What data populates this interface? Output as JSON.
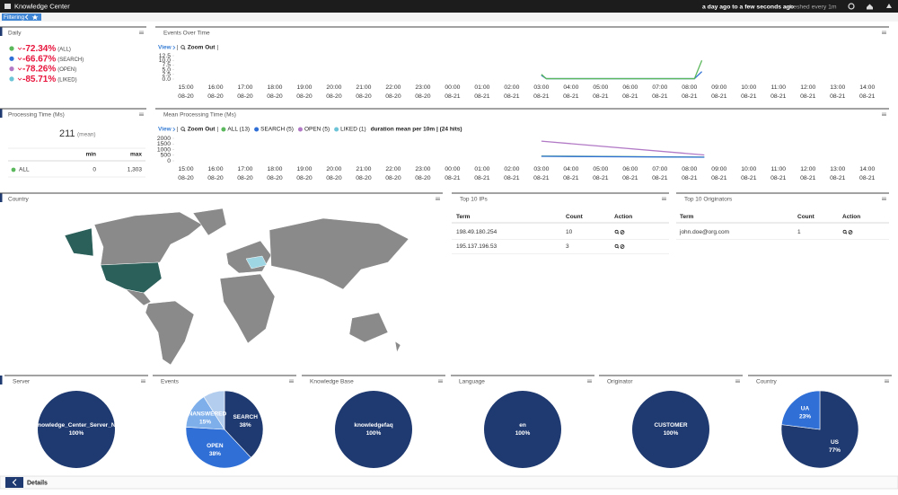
{
  "header": {
    "title": "Knowledge Center",
    "time_range": "a day ago to a few seconds ago",
    "refresh": "refreshed every 1m",
    "filtering": "Filtering"
  },
  "daily": {
    "title": "Daily",
    "items": [
      {
        "value": "-72.34%",
        "label": "(ALL)",
        "color": "#5cb85c"
      },
      {
        "value": "-66.67%",
        "label": "(SEARCH)",
        "color": "#2f6fd6"
      },
      {
        "value": "-78.26%",
        "label": "(OPEN)",
        "color": "#b27ac6"
      },
      {
        "value": "-85.71%",
        "label": "(LIKED)",
        "color": "#6cc4d6"
      }
    ]
  },
  "processing_time": {
    "title": "Processing Time (Ms)",
    "mean": "211",
    "mean_label": "(mean)",
    "columns": [
      "min",
      "max"
    ],
    "rows": [
      {
        "name": "ALL",
        "color": "#5cb85c",
        "min": "0",
        "max": "1,303"
      }
    ]
  },
  "charts": [
    {
      "type": "line",
      "title": "Events Over Time",
      "view": "View",
      "zoom": "Zoom Out",
      "xlim": [
        "08-20 14:40",
        "08-21 14:35"
      ],
      "xticks": [
        {
          "time": "15:00",
          "date": "08-20"
        },
        {
          "time": "16:00",
          "date": "08-20"
        },
        {
          "time": "17:00",
          "date": "08-20"
        },
        {
          "time": "18:00",
          "date": "08-20"
        },
        {
          "time": "19:00",
          "date": "08-20"
        },
        {
          "time": "20:00",
          "date": "08-20"
        },
        {
          "time": "21:00",
          "date": "08-20"
        },
        {
          "time": "22:00",
          "date": "08-20"
        },
        {
          "time": "23:00",
          "date": "08-20"
        },
        {
          "time": "00:00",
          "date": "08-21"
        },
        {
          "time": "01:00",
          "date": "08-21"
        },
        {
          "time": "02:00",
          "date": "08-21"
        },
        {
          "time": "03:00",
          "date": "08-21"
        },
        {
          "time": "04:00",
          "date": "08-21"
        },
        {
          "time": "05:00",
          "date": "08-21"
        },
        {
          "time": "06:00",
          "date": "08-21"
        },
        {
          "time": "07:00",
          "date": "08-21"
        },
        {
          "time": "08:00",
          "date": "08-21"
        },
        {
          "time": "09:00",
          "date": "08-21"
        },
        {
          "time": "10:00",
          "date": "08-21"
        },
        {
          "time": "11:00",
          "date": "08-21"
        },
        {
          "time": "12:00",
          "date": "08-21"
        },
        {
          "time": "13:00",
          "date": "08-21"
        },
        {
          "time": "14:00",
          "date": "08-21"
        }
      ],
      "ylim": [
        0,
        12.5
      ],
      "yticks": [
        {
          "value": 0,
          "label": "0.0"
        },
        {
          "value": 2.5,
          "label": "2.5"
        },
        {
          "value": 5,
          "label": "5.0"
        },
        {
          "value": 7.5,
          "label": "7.5"
        },
        {
          "value": 10,
          "label": "10.0"
        },
        {
          "value": 12.5,
          "label": "12.5"
        }
      ],
      "series": [
        {
          "color": "#2f6fd6",
          "x": [
            "08-21 03:00",
            "08-21 03:10",
            "08-21 08:10",
            "08-21 08:25"
          ],
          "values": [
            2,
            0.2,
            0.2,
            4
          ]
        },
        {
          "color": "#5cb85c",
          "x": [
            "08-21 03:00",
            "08-21 03:10",
            "08-21 08:10",
            "08-21 08:25"
          ],
          "values": [
            2.5,
            0.2,
            0.2,
            10
          ]
        }
      ]
    },
    {
      "type": "line",
      "title": "Mean Processing Time (Ms)",
      "view": "View",
      "zoom": "Zoom Out",
      "note": "duration mean per 10m | (24 hits)",
      "xlim": [
        "08-20 14:40",
        "08-21 14:35"
      ],
      "xticks": [
        {
          "time": "15:00",
          "date": "08-20"
        },
        {
          "time": "16:00",
          "date": "08-20"
        },
        {
          "time": "17:00",
          "date": "08-20"
        },
        {
          "time": "18:00",
          "date": "08-20"
        },
        {
          "time": "19:00",
          "date": "08-20"
        },
        {
          "time": "20:00",
          "date": "08-20"
        },
        {
          "time": "21:00",
          "date": "08-20"
        },
        {
          "time": "22:00",
          "date": "08-20"
        },
        {
          "time": "23:00",
          "date": "08-20"
        },
        {
          "time": "00:00",
          "date": "08-21"
        },
        {
          "time": "01:00",
          "date": "08-21"
        },
        {
          "time": "02:00",
          "date": "08-21"
        },
        {
          "time": "03:00",
          "date": "08-21"
        },
        {
          "time": "04:00",
          "date": "08-21"
        },
        {
          "time": "05:00",
          "date": "08-21"
        },
        {
          "time": "06:00",
          "date": "08-21"
        },
        {
          "time": "07:00",
          "date": "08-21"
        },
        {
          "time": "08:00",
          "date": "08-21"
        },
        {
          "time": "09:00",
          "date": "08-21"
        },
        {
          "time": "10:00",
          "date": "08-21"
        },
        {
          "time": "11:00",
          "date": "08-21"
        },
        {
          "time": "12:00",
          "date": "08-21"
        },
        {
          "time": "13:00",
          "date": "08-21"
        },
        {
          "time": "14:00",
          "date": "08-21"
        }
      ],
      "ylim": [
        0,
        2000
      ],
      "yticks": [
        0,
        500,
        1000,
        1500,
        2000
      ],
      "series": [
        {
          "name": "ALL (13)",
          "color": "#5cb85c",
          "x": [
            "08-21 03:00",
            "08-21 08:30"
          ],
          "values": [
            420,
            330
          ]
        },
        {
          "name": "SEARCH (5)",
          "color": "#2f6fd6",
          "x": [
            "08-21 03:00",
            "08-21 08:30"
          ],
          "values": [
            400,
            320
          ]
        },
        {
          "name": "OPEN (5)",
          "color": "#b27ac6",
          "x": [
            "08-21 03:00",
            "08-21 08:30"
          ],
          "values": [
            1750,
            520
          ]
        },
        {
          "name": "LIKED (1)",
          "color": "#6cc4d6",
          "x": [],
          "values": []
        }
      ]
    }
  ],
  "country_map": {
    "title": "Country"
  },
  "top_ips": {
    "title": "Top 10 IPs",
    "columns": [
      "Term",
      "Count",
      "Action"
    ],
    "rows": [
      [
        "198.49.180.254",
        "10"
      ],
      [
        "195.137.196.53",
        "3"
      ]
    ]
  },
  "top_originators": {
    "title": "Top 10 Originators",
    "columns": [
      "Term",
      "Count",
      "Action"
    ],
    "rows": [
      [
        "john.doe@org.com",
        "1"
      ]
    ]
  },
  "pies": [
    {
      "title": "Server",
      "labels": [
        "Knowledge_Center_Server_No"
      ],
      "values": [
        100
      ],
      "value_labels": [
        "100%"
      ],
      "colors": [
        "#1f3a70"
      ]
    },
    {
      "title": "Events",
      "labels": [
        "SEARCH",
        "OPEN",
        "UNANSWERED",
        null
      ],
      "values": [
        38,
        38,
        15,
        9
      ],
      "value_labels": [
        "38%",
        "38%",
        "15%",
        null
      ],
      "colors": [
        "#1f3a70",
        "#2f6fd6",
        "#7eafeb",
        "#b3cdef"
      ]
    },
    {
      "title": "Knowledge Base",
      "labels": [
        "knowledgefaq"
      ],
      "values": [
        100
      ],
      "value_labels": [
        "100%"
      ],
      "colors": [
        "#1f3a70"
      ]
    },
    {
      "title": "Language",
      "labels": [
        "en"
      ],
      "values": [
        100
      ],
      "value_labels": [
        "100%"
      ],
      "colors": [
        "#1f3a70"
      ]
    },
    {
      "title": "Originator",
      "labels": [
        "CUSTOMER"
      ],
      "values": [
        100
      ],
      "value_labels": [
        "100%"
      ],
      "colors": [
        "#1f3a70"
      ]
    },
    {
      "title": "Country",
      "labels": [
        "US",
        "UA"
      ],
      "values": [
        77,
        23
      ],
      "value_labels": [
        "77%",
        "23%"
      ],
      "colors": [
        "#1f3a70",
        "#2f6fd6"
      ]
    }
  ],
  "footer": {
    "details": "Details"
  }
}
